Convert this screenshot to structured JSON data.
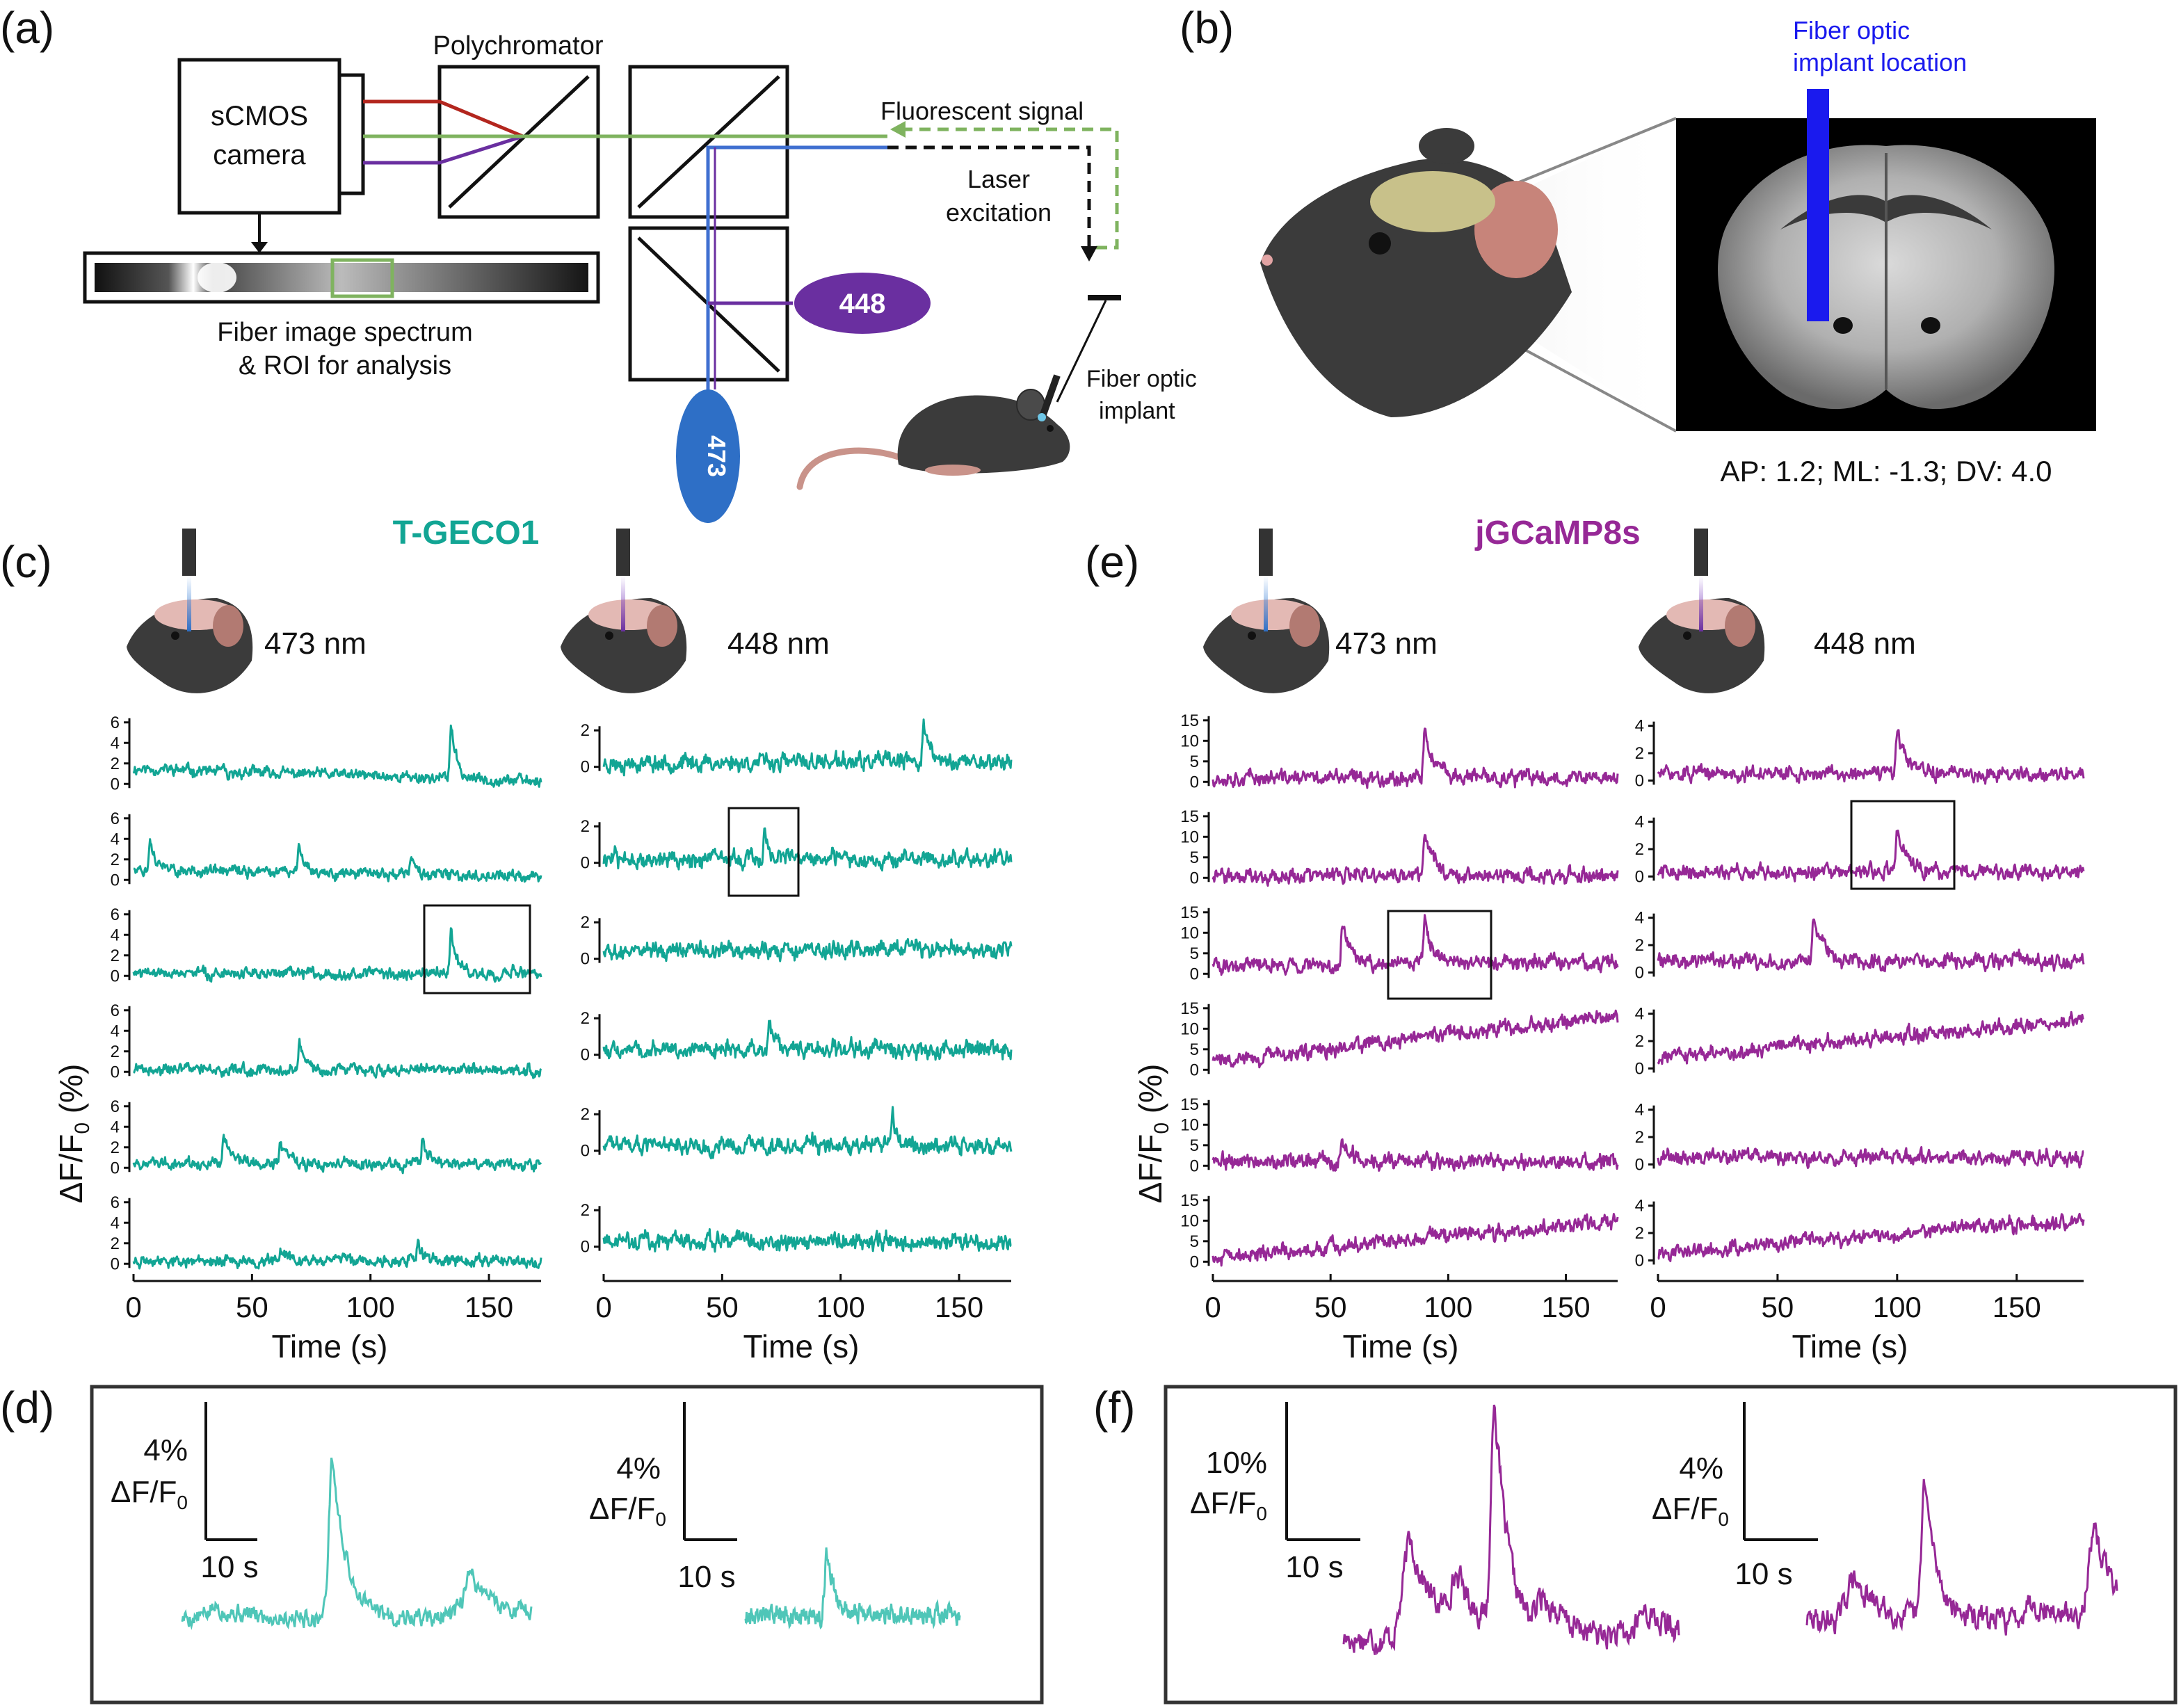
{
  "panels": {
    "a": "(a)",
    "b": "(b)",
    "c": "(c)",
    "d": "(d)",
    "e": "(e)",
    "f": "(f)"
  },
  "setup": {
    "camera": [
      "sCMOS",
      "camera"
    ],
    "polychromator": "Polychromator",
    "fluorescent_signal": "Fluorescent signal",
    "laser_excitation": [
      "Laser",
      "excitation"
    ],
    "spectrum_caption": [
      "Fiber image spectrum",
      "& ROI for analysis"
    ],
    "laser_448": "448",
    "laser_473": "473",
    "implant": [
      "Fiber optic",
      "implant"
    ]
  },
  "brain": {
    "implant_location": [
      "Fiber optic",
      "implant location"
    ],
    "coordinates": "AP: 1.2; ML: -1.3; DV: 4.0"
  },
  "sensors": {
    "tgeco": "T-GECO1",
    "jgcamp": "jGCaMP8s",
    "wl473": "473 nm",
    "wl448": "448 nm"
  },
  "axes": {
    "ylabel_main": "ΔF/F",
    "ylabel_sub": "0",
    "ylabel_unit": " (%)",
    "xlabel": "Time (s)",
    "xticks": [
      "0",
      "50",
      "100",
      "150"
    ]
  },
  "scalebars": {
    "d_left": "4%",
    "d_right": "4%",
    "f_left": "10%",
    "f_right": "4%",
    "dff_main": "ΔF/F",
    "dff_sub": "0",
    "time": "10 s"
  },
  "colors": {
    "tgeco": "#12a594",
    "tgeco_light": "#4fc6b8",
    "jgcamp": "#962896",
    "blue_laser": "#2e6fc6",
    "violet_laser": "#6a2fa0",
    "implant_marker": "#1a1aee"
  },
  "chart_data": [
    {
      "type": "line",
      "panel": "c",
      "excitation": "473 nm",
      "xlabel": "Time (s)",
      "ylabel": "ΔF/F0 (%)",
      "xlim": [
        0,
        172
      ],
      "ylim": [
        -1,
        7
      ],
      "yticks": [
        0,
        2,
        4,
        6
      ],
      "series": [
        {
          "values": [
            [
              0,
              1.5
            ],
            [
              40,
              0.4
            ],
            [
              120,
              0.6
            ],
            [
              134,
              6.0
            ],
            [
              140,
              0.4
            ],
            [
              172,
              0.3
            ]
          ]
        },
        {
          "values": [
            [
              0,
              1.0
            ],
            [
              7,
              4.0
            ],
            [
              70,
              3.8
            ],
            [
              117,
              2.2
            ],
            [
              150,
              0.6
            ],
            [
              172,
              0.3
            ]
          ]
        },
        {
          "values": [
            [
              0,
              0.3
            ],
            [
              60,
              0.2
            ],
            [
              134,
              5.0
            ],
            [
              160,
              0.6
            ],
            [
              172,
              0.2
            ]
          ]
        },
        {
          "values": [
            [
              0,
              0.2
            ],
            [
              70,
              3.2
            ],
            [
              150,
              0.3
            ],
            [
              172,
              0.2
            ]
          ]
        },
        {
          "values": [
            [
              0,
              0.5
            ],
            [
              38,
              3.2
            ],
            [
              62,
              2.5
            ],
            [
              122,
              3.0
            ],
            [
              150,
              0.5
            ],
            [
              172,
              0.3
            ]
          ]
        },
        {
          "values": [
            [
              0,
              0.3
            ],
            [
              62,
              1.5
            ],
            [
              120,
              2.0
            ],
            [
              172,
              0.3
            ]
          ]
        }
      ]
    },
    {
      "type": "line",
      "panel": "c",
      "excitation": "448 nm",
      "xlabel": "Time (s)",
      "ylabel": "ΔF/F0 (%)",
      "xlim": [
        0,
        172
      ],
      "ylim": [
        -1.5,
        3
      ],
      "yticks": [
        0,
        2
      ],
      "series": [
        {
          "values": [
            [
              0,
              0.2
            ],
            [
              135,
              2.6
            ],
            [
              172,
              0.3
            ]
          ]
        },
        {
          "values": [
            [
              0,
              0.2
            ],
            [
              68,
              1.6
            ],
            [
              172,
              0.2
            ]
          ]
        },
        {
          "values": [
            [
              0,
              0.5
            ],
            [
              172,
              0.5
            ]
          ]
        },
        {
          "values": [
            [
              0,
              0.3
            ],
            [
              70,
              1.7
            ],
            [
              172,
              0.3
            ]
          ]
        },
        {
          "values": [
            [
              0,
              0.3
            ],
            [
              122,
              1.8
            ],
            [
              172,
              0.3
            ]
          ]
        },
        {
          "values": [
            [
              0,
              0.3
            ],
            [
              172,
              0.3
            ]
          ]
        }
      ]
    },
    {
      "type": "line",
      "panel": "e",
      "excitation": "473 nm",
      "xlabel": "Time (s)",
      "ylabel": "ΔF/F0 (%)",
      "xlim": [
        0,
        172
      ],
      "ylim": [
        -3,
        17
      ],
      "yticks": [
        0,
        5,
        10,
        15
      ],
      "series": [
        {
          "values": [
            [
              0,
              1.0
            ],
            [
              90,
              12.0
            ],
            [
              172,
              1.0
            ]
          ]
        },
        {
          "values": [
            [
              0,
              0.5
            ],
            [
              90,
              12.0
            ],
            [
              172,
              0.5
            ]
          ]
        },
        {
          "values": [
            [
              0,
              2.0
            ],
            [
              55,
              12.0
            ],
            [
              90,
              13.0
            ],
            [
              172,
              3.0
            ]
          ]
        },
        {
          "values": [
            [
              0,
              2.0
            ],
            [
              100,
              10.0
            ],
            [
              172,
              13.0
            ]
          ]
        },
        {
          "values": [
            [
              0,
              1.0
            ],
            [
              55,
              6.0
            ],
            [
              172,
              1.0
            ]
          ]
        },
        {
          "values": [
            [
              0,
              1.0
            ],
            [
              172,
              10.0
            ]
          ]
        }
      ]
    },
    {
      "type": "line",
      "panel": "e",
      "excitation": "448 nm",
      "xlabel": "Time (s)",
      "ylabel": "ΔF/F0 (%)",
      "xlim": [
        0,
        178
      ],
      "ylim": [
        -1,
        5
      ],
      "yticks": [
        0,
        2,
        4
      ],
      "series": [
        {
          "values": [
            [
              0,
              0.5
            ],
            [
              100,
              3.5
            ],
            [
              178,
              0.5
            ]
          ]
        },
        {
          "values": [
            [
              0,
              0.3
            ],
            [
              100,
              3.5
            ],
            [
              178,
              0.3
            ]
          ]
        },
        {
          "values": [
            [
              0,
              0.8
            ],
            [
              65,
              4.0
            ],
            [
              178,
              0.8
            ]
          ]
        },
        {
          "values": [
            [
              0,
              0.8
            ],
            [
              178,
              3.5
            ]
          ]
        },
        {
          "values": [
            [
              0,
              0.5
            ],
            [
              178,
              0.5
            ]
          ]
        },
        {
          "values": [
            [
              0,
              0.5
            ],
            [
              178,
              3.0
            ]
          ]
        }
      ]
    }
  ]
}
